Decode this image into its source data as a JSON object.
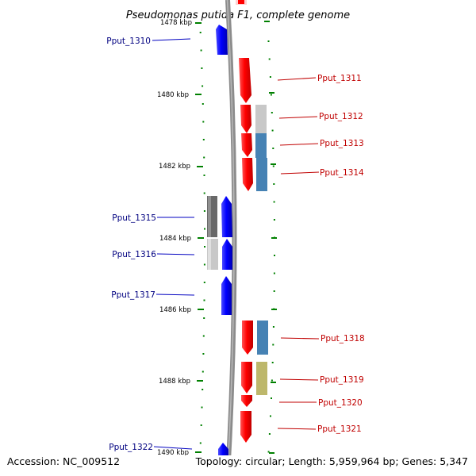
{
  "title": "Pseudomonas putida F1, complete genome",
  "accession": "Accession: NC_009512",
  "topology": "Topology: circular; Length: 5,959,964 bp; Genes: 5,347",
  "colors": {
    "forward_gene": "#ff0000",
    "reverse_gene": "#0000ff",
    "backbone": "#8c8c8c",
    "tick": "#008000",
    "left_label": "#000080",
    "right_label": "#c00000",
    "cog_steelblue": "#4682b4",
    "cog_khaki": "#bdb76b",
    "cog_darkgray": "#696969",
    "cog_lightgray": "#c8c8c8"
  },
  "ruler": {
    "labels": [
      "1478 kbp",
      "1480 kbp",
      "1482 kbp",
      "1484 kbp",
      "1486 kbp",
      "1488 kbp",
      "1490 kbp"
    ]
  },
  "genes": {
    "reverse": [
      {
        "label": "Pput_1310",
        "cog_color": ""
      },
      {
        "label": "Pput_1315",
        "cog_color": "#696969"
      },
      {
        "label": "Pput_1316",
        "cog_color": "#c8c8c8"
      },
      {
        "label": "Pput_1317",
        "cog_color": ""
      },
      {
        "label": "Pput_1322",
        "cog_color": ""
      }
    ],
    "forward": [
      {
        "label": "Pput_1311",
        "cog_color": ""
      },
      {
        "label": "Pput_1312",
        "cog_color": "#c8c8c8"
      },
      {
        "label": "Pput_1313",
        "cog_color": "#4682b4"
      },
      {
        "label": "Pput_1314",
        "cog_color": "#4682b4"
      },
      {
        "label": "Pput_1318",
        "cog_color": "#4682b4"
      },
      {
        "label": "Pput_1319",
        "cog_color": "#bdb76b"
      },
      {
        "label": "Pput_1320",
        "cog_color": ""
      },
      {
        "label": "Pput_1321",
        "cog_color": ""
      }
    ]
  }
}
